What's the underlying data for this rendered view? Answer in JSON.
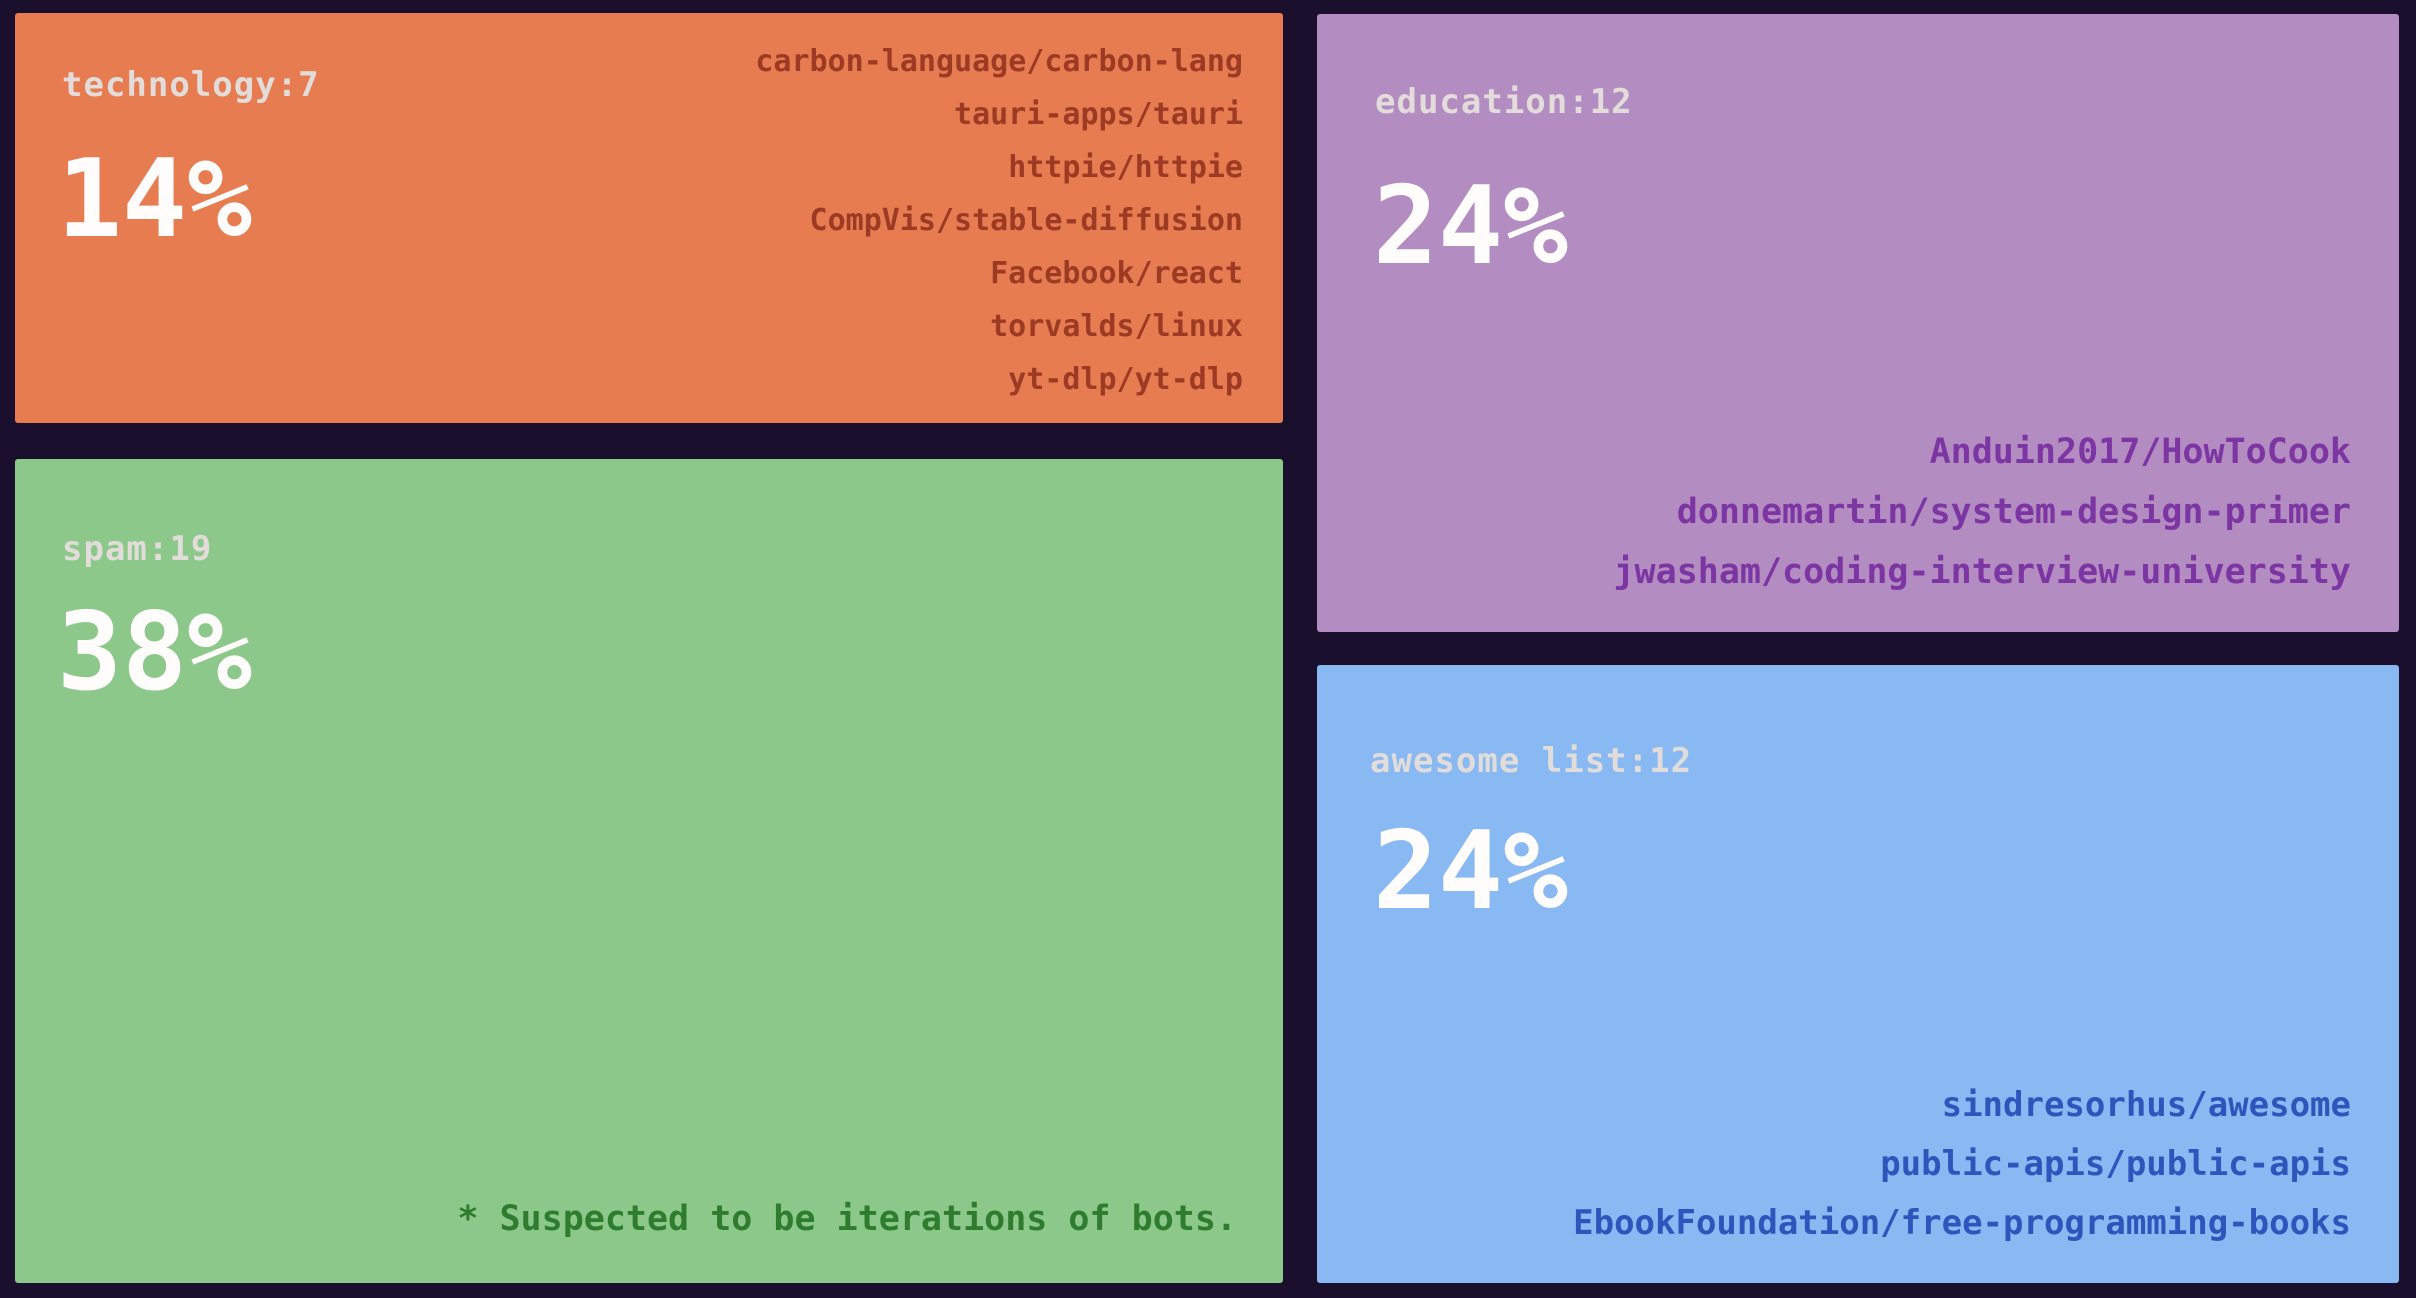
{
  "background_color": "#1a102e",
  "title_text_color": "#e2ddda",
  "percent_text_color": "#fffdfb",
  "chart_data": {
    "type": "treemap",
    "title": "",
    "legend_position": "none",
    "groups": [
      {
        "label": "technology",
        "count": 7,
        "display_title": "technology:7",
        "percent": 14,
        "percent_label": "14%",
        "tile_color": "#e77c51",
        "item_text_color": "#9c3a24",
        "items": [
          "carbon-language/carbon-lang",
          "tauri-apps/tauri",
          "httpie/httpie",
          "CompVis/stable-diffusion",
          "Facebook/react",
          "torvalds/linux",
          "yt-dlp/yt-dlp"
        ]
      },
      {
        "label": "spam",
        "count": 19,
        "display_title": "spam:19",
        "percent": 38,
        "percent_label": "38%",
        "tile_color": "#8dc88b",
        "item_text_color": "#2e7d2f",
        "items": [],
        "note": "* Suspected to be iterations of bots."
      },
      {
        "label": "education",
        "count": 12,
        "display_title": "education:12",
        "percent": 24,
        "percent_label": "24%",
        "tile_color": "#b38cc2",
        "item_text_color": "#7c35a2",
        "items": [
          "Anduin2017/HowToCook",
          "donnemartin/system-design-primer",
          "jwasham/coding-interview-university"
        ]
      },
      {
        "label": "awesome list",
        "count": 12,
        "display_title": "awesome list:12",
        "percent": 24,
        "percent_label": "24%",
        "tile_color": "#88b9f2",
        "item_text_color": "#2d56bd",
        "items": [
          "sindresorhus/awesome",
          "public-apis/public-apis",
          "EbookFoundation/free-programming-books"
        ]
      }
    ]
  }
}
